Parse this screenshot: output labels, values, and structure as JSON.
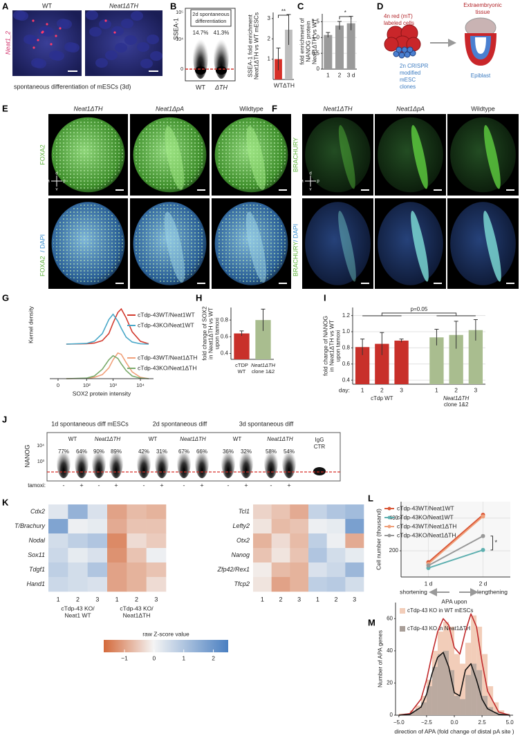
{
  "panel_labels": [
    "A",
    "B",
    "C",
    "D",
    "E",
    "F",
    "G",
    "H",
    "I",
    "J",
    "K",
    "L",
    "M"
  ],
  "panel_a": {
    "images": [
      "WT",
      "Neat1ΔTH"
    ],
    "stain": "Neat1_2",
    "caption": "spontaneous differentiation of mESCs (3d)"
  },
  "panel_b": {
    "title": [
      "2d spontaneous",
      "differentiation"
    ],
    "ylabel": "SSEA-1",
    "yticks": [
      "10⁵",
      "10⁴",
      "0"
    ],
    "percentages": [
      "14.7%",
      "41.3%"
    ],
    "groups": [
      "WT",
      "ΔTH"
    ]
  },
  "panel_d": {
    "cells": [
      "4n red (mT)",
      "labeled cells"
    ],
    "tissue": [
      "Extraembryonic",
      "tissue"
    ],
    "clones": [
      "2n CRISPR",
      "modified",
      "mESC",
      "clones"
    ],
    "epiblast": "Epiblast"
  },
  "panel_e": {
    "columns": [
      "Neat1ΔTH",
      "Neat1ΔpA",
      "Wildtype"
    ],
    "stain": "FOXA2",
    "counterstain": "/ DAPI",
    "compass": [
      "a",
      "p",
      "d",
      "v"
    ]
  },
  "panel_f": {
    "columns": [
      "Neat1ΔTH",
      "Neat1ΔpA",
      "Wildtype"
    ],
    "stain": "BRACHURY",
    "counterstain": "/ DAPI",
    "compass": [
      "a",
      "p",
      "d",
      "v"
    ]
  },
  "panel_j": {
    "groups": [
      "1d spontaneous diff mESCs",
      "2d spontaneous diff",
      "3d spontaneous diff"
    ],
    "genotypes": [
      "WT",
      "Neat1ΔTH"
    ],
    "percentages": [
      "77%",
      "64%",
      "90%",
      "89%",
      "42%",
      "31%",
      "67%",
      "66%",
      "36%",
      "32%",
      "58%",
      "54%"
    ],
    "ylabel": "NANOG",
    "yticks": [
      "10⁴",
      "10³"
    ],
    "control": [
      "IgG",
      "CTR"
    ],
    "treatment_label": "tamoxi:",
    "treatments": [
      "-",
      "+"
    ]
  },
  "chart_data": [
    {
      "type": "bar",
      "ylabel": [
        "SSEA-1 fold enrichment",
        "Neat1ΔTH vs WT mESCs"
      ],
      "categories": [
        "WT",
        "ΔTH"
      ],
      "values": [
        1,
        2.45
      ],
      "errors": [
        0.55,
        0.75
      ],
      "colors": [
        "#d62f27",
        "#bdbdbd"
      ],
      "ylim": [
        0,
        3.3
      ],
      "yticks": [
        1,
        2,
        3
      ],
      "annotation": "**"
    },
    {
      "type": "bar",
      "ylabel": [
        "fold enrichment of",
        "NANOG protein",
        "Neat1ΔTH vs WT"
      ],
      "categories": [
        "1",
        "2",
        "3 d"
      ],
      "values": [
        1.08,
        1.38,
        1.45
      ],
      "errors": [
        0.08,
        0.13,
        0.22
      ],
      "color": "#9a9a9a",
      "ylim": [
        0,
        1.75
      ],
      "yticks": [
        0,
        0.5,
        {
          "value": 1,
          "label": "1.0"
        },
        1.5
      ],
      "grid": true,
      "annotation": "*"
    },
    {
      "type": "density",
      "ylabel": "Kernel density",
      "xscale": "symlog",
      "xlim": [
        -10,
        30000
      ],
      "ylim": [
        0,
        1.1
      ],
      "series": [
        {
          "name": "cTdp-43WT/Neat1WT",
          "color": "#d23a2e",
          "x": [
            10,
            100,
            200,
            400,
            700,
            1000,
            1500,
            2000,
            3000,
            5000,
            10000,
            20000
          ],
          "values": [
            0,
            0.01,
            0.03,
            0.1,
            0.3,
            0.6,
            0.9,
            1.0,
            0.75,
            0.35,
            0.08,
            0.01
          ]
        },
        {
          "name": "cTdp-43KO/Neat1WT",
          "color": "#4aa8c8",
          "x": [
            10,
            100,
            200,
            400,
            700,
            1000,
            1500,
            2000,
            3000,
            5000,
            10000,
            20000
          ],
          "values": [
            0,
            0.02,
            0.08,
            0.3,
            0.7,
            0.85,
            0.65,
            0.45,
            0.2,
            0.06,
            0.01,
            0
          ]
        }
      ]
    },
    {
      "type": "density",
      "xlabel": "SOX2 protein intensity",
      "xscale": "symlog",
      "xlim": [
        -10,
        30000
      ],
      "ylim": [
        0,
        1.1
      ],
      "xticks": [
        0,
        {
          "value": 100,
          "label": "10²"
        },
        {
          "value": 1000,
          "label": "10³"
        },
        {
          "value": 10000,
          "label": "10⁴"
        }
      ],
      "series": [
        {
          "name": "cTdp-43WT/Neat1ΔTH",
          "color": "#f0a07a",
          "x": [
            10,
            100,
            200,
            400,
            700,
            1000,
            1500,
            2000,
            3000,
            5000,
            10000,
            20000
          ],
          "values": [
            0,
            0.01,
            0.05,
            0.15,
            0.4,
            0.7,
            0.95,
            0.9,
            0.6,
            0.25,
            0.05,
            0
          ]
        },
        {
          "name": "cTdp-43KO/Neat1ΔTH",
          "color": "#7aaa6a",
          "x": [
            10,
            100,
            200,
            400,
            700,
            1000,
            1500,
            2000,
            3000,
            5000,
            10000,
            20000
          ],
          "values": [
            0,
            0.02,
            0.1,
            0.35,
            0.7,
            0.85,
            0.75,
            0.55,
            0.3,
            0.1,
            0.02,
            0
          ]
        }
      ]
    },
    {
      "type": "bar",
      "ylabel": [
        "fold  change of SOX2",
        "in Neat1ΔTH vs WT",
        "upon tamoxi"
      ],
      "categories": [
        [
          "cTDP",
          "WT"
        ],
        [
          "Neat1ΔTH",
          "clone 1&2"
        ]
      ],
      "values": [
        0.64,
        0.8
      ],
      "errors": [
        0.03,
        0.13
      ],
      "colors": [
        "#c8302a",
        "#a9bd8f"
      ],
      "ylim": [
        0.33,
        0.95
      ],
      "yticks": [
        0.4,
        0.6,
        0.8
      ]
    },
    {
      "type": "bar",
      "ylabel": [
        "fold  change of NANOG",
        "in Neat1ΔTH vs WT",
        "upon tamoxi"
      ],
      "category_prefix": "day:",
      "categories": [
        "1",
        "2",
        "3",
        "1",
        "2",
        "3"
      ],
      "groups": [
        [
          "cTdp WT"
        ],
        [
          "Neat1ΔTH",
          "clone 1&2"
        ]
      ],
      "values": [
        0.81,
        0.85,
        0.89,
        0.93,
        0.96,
        1.02
      ],
      "errors": [
        0.1,
        0.14,
        0.02,
        0.1,
        0.17,
        0.13
      ],
      "colors": [
        "#c8302a",
        "#c8302a",
        "#c8302a",
        "#a9bd8f",
        "#a9bd8f",
        "#a9bd8f"
      ],
      "ylim": [
        0.35,
        1.3
      ],
      "yticks": [
        0.4,
        0.6,
        0.8,
        {
          "value": 1,
          "label": "1.0"
        },
        1.2
      ],
      "grid": true,
      "annotation": "p=0.05"
    },
    {
      "type": "heatmap",
      "rows": [
        "Cdx2",
        "T/Brachury",
        "Nodal",
        "Sox11",
        "Tdgf1",
        "Hand1"
      ],
      "columns": [
        "1",
        "2",
        "3",
        "1",
        "2",
        "3"
      ],
      "groups": [
        [
          "cTdp-43 KO/",
          "Neat1 WT"
        ],
        [
          "cTdp-43 KO/",
          "Neat1ΔTH"
        ]
      ],
      "values": [
        [
          0.3,
          1.4,
          0.4,
          -1.0,
          -0.7,
          -0.8
        ],
        [
          1.7,
          0.1,
          0.2,
          -0.9,
          -0.6,
          -0.6
        ],
        [
          0.5,
          0.8,
          1.0,
          -1.3,
          -0.3,
          -0.5
        ],
        [
          0.6,
          0.2,
          0.4,
          -1.2,
          -0.6,
          0.1
        ],
        [
          0.8,
          0.5,
          1.0,
          -1.0,
          -0.8,
          -0.6
        ],
        [
          0.6,
          0.5,
          0.4,
          -1.0,
          -0.8,
          -0.3
        ]
      ],
      "colors": [
        "#d4693a",
        "#f4f4f4",
        "#4a7fc1"
      ],
      "zlim": [
        -1.7,
        2.5
      ],
      "colorbar": {
        "title": "raw Z-score value",
        "ticks": [
          {
            "value": -1,
            "label": "−1"
          },
          0,
          1,
          2
        ]
      }
    },
    {
      "type": "heatmap",
      "rows": [
        "Tcl1",
        "Lefty2",
        "Otx2",
        "Nanog",
        "Zfp42/Rex1",
        "Tfcp2"
      ],
      "columns": [
        "1",
        "2",
        "3",
        "1",
        "2",
        "3"
      ],
      "values": [
        [
          -0.4,
          -0.6,
          -0.9,
          0.7,
          1.0,
          1.2
        ],
        [
          -0.2,
          -0.7,
          -0.6,
          0.1,
          0.2,
          1.8
        ],
        [
          -0.8,
          -0.3,
          -0.7,
          0.8,
          0.1,
          -0.9
        ],
        [
          -0.6,
          -0.2,
          -0.6,
          1.0,
          0.5,
          0.2
        ],
        [
          -0.1,
          -0.7,
          -0.8,
          0.4,
          0.6,
          1.3
        ],
        [
          -0.2,
          -1.0,
          -0.8,
          0.8,
          0.9,
          0.5
        ]
      ],
      "colors": [
        "#d4693a",
        "#f4f4f4",
        "#4a7fc1"
      ],
      "zlim": [
        -1.7,
        2.5
      ]
    },
    {
      "type": "line",
      "ylabel": "Cell number (thousand)",
      "categories": [
        "1 d",
        "2 d"
      ],
      "ylim": [
        40,
        500
      ],
      "yticks": [
        200,
        400
      ],
      "grid": true,
      "annotation": "*",
      "series": [
        {
          "name": "cTdp-43WT/Neat1WT",
          "color": "#d95535",
          "values": [
            130,
            420
          ]
        },
        {
          "name": "cTdp-43KO/Neat1WT",
          "color": "#5fb0b0",
          "values": [
            95,
            205
          ]
        },
        {
          "name": "cTdp-43WT/Neat1ΔTH",
          "color": "#f0a07a",
          "values": [
            120,
            410
          ]
        },
        {
          "name": "cTdp-43KO/Neat1ΔTH",
          "color": "#999999",
          "values": [
            110,
            290
          ]
        }
      ]
    },
    {
      "type": "histogram",
      "xlabel": "direction of APA (fold change of distal pA site )",
      "ylabel": "Number of APA genes",
      "annotations": [
        "shortening",
        "APA upon",
        "lengthening"
      ],
      "bins": [
        -5,
        -4.5,
        -4,
        -3.5,
        -3,
        -2.5,
        -2,
        -1.5,
        -1,
        -0.5,
        0,
        0.5,
        1,
        1.5,
        2,
        2.5,
        3,
        3.5,
        4,
        4.5,
        5
      ],
      "series": [
        {
          "name": "cTdp-43 KO in WT mESCs",
          "color": "#f2cdb9",
          "values": [
            1,
            1,
            3,
            6,
            12,
            22,
            40,
            52,
            58,
            55,
            38,
            32,
            45,
            62,
            55,
            38,
            18,
            8,
            3,
            1
          ]
        },
        {
          "name": "cTdp-43 KO in Neat1ΔTH",
          "color": "#a89e98",
          "values": [
            0,
            1,
            2,
            4,
            8,
            18,
            30,
            38,
            40,
            28,
            12,
            10,
            25,
            32,
            28,
            12,
            5,
            2,
            1,
            0
          ]
        }
      ],
      "curves": [
        {
          "color": "#c0282a",
          "x": [
            -5,
            -4,
            -3,
            -2.5,
            -2,
            -1.5,
            -1,
            -0.5,
            0,
            0.5,
            1,
            1.5,
            2,
            2.5,
            3,
            4,
            5
          ],
          "values": [
            0,
            1,
            10,
            22,
            38,
            52,
            60,
            56,
            42,
            38,
            52,
            63,
            55,
            33,
            15,
            2,
            0
          ]
        },
        {
          "color": "#111111",
          "x": [
            -5,
            -4,
            -3,
            -2.5,
            -2,
            -1.5,
            -1,
            -0.5,
            0,
            0.5,
            1,
            1.5,
            2,
            2.5,
            3,
            4,
            5
          ],
          "values": [
            0,
            0.5,
            5,
            13,
            26,
            36,
            39,
            30,
            14,
            12,
            28,
            32,
            22,
            10,
            4,
            0.5,
            0
          ]
        }
      ],
      "xlim": [
        -5.3,
        5.3
      ],
      "xticks": [
        {
          "value": -5,
          "label": "−5.0"
        },
        {
          "value": -2.5,
          "label": "−2.5"
        },
        {
          "value": 0,
          "label": "0.0"
        },
        2.5,
        {
          "value": 5,
          "label": "5.0"
        }
      ],
      "ylim": [
        0,
        70
      ],
      "yticks": [
        0,
        20,
        40,
        60
      ]
    }
  ]
}
